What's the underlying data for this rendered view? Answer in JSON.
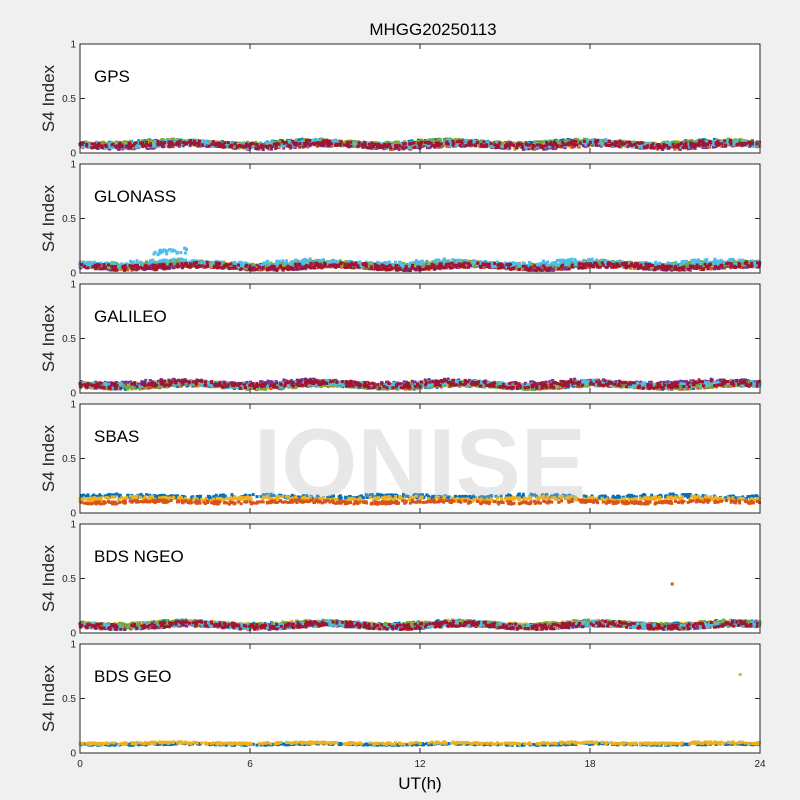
{
  "figure": {
    "title": "MHGG20250113",
    "xlabel": "UT(h)",
    "watermark": "IONISE",
    "background": "#f0f0f0",
    "axes_background": "#ffffff"
  },
  "chart_data": {
    "type": "scatter",
    "title": "MHGG20250113",
    "xlabel": "UT(h)",
    "ylabel": "S4 Index",
    "xlim": [
      0,
      24
    ],
    "ylim": [
      0,
      1
    ],
    "xticks": [
      "0",
      "6",
      "12",
      "18",
      "24"
    ],
    "yticks": [
      "0",
      "0.5",
      "1"
    ],
    "grid": false,
    "colors": [
      "#0072bd",
      "#d95319",
      "#edb120",
      "#7e2f8e",
      "#77ac30",
      "#4dbeee",
      "#a2142f"
    ],
    "panels": [
      {
        "label": "GPS",
        "bands": [
          {
            "color": "#0072bd",
            "level": 0.09,
            "spread": 0.03,
            "from": 0,
            "to": 24
          },
          {
            "color": "#d95319",
            "level": 0.07,
            "spread": 0.03,
            "from": 0,
            "to": 24
          },
          {
            "color": "#edb120",
            "level": 0.08,
            "spread": 0.03,
            "from": 0,
            "to": 24
          },
          {
            "color": "#7e2f8e",
            "level": 0.07,
            "spread": 0.03,
            "from": 0,
            "to": 24
          },
          {
            "color": "#77ac30",
            "level": 0.09,
            "spread": 0.03,
            "from": 0,
            "to": 24
          },
          {
            "color": "#4dbeee",
            "level": 0.08,
            "spread": 0.03,
            "from": 0,
            "to": 24
          },
          {
            "color": "#a2142f",
            "level": 0.08,
            "spread": 0.03,
            "from": 0,
            "to": 24
          }
        ]
      },
      {
        "label": "GLONASS",
        "bands": [
          {
            "color": "#0072bd",
            "level": 0.07,
            "spread": 0.03,
            "from": 0,
            "to": 24
          },
          {
            "color": "#d95319",
            "level": 0.06,
            "spread": 0.03,
            "from": 0,
            "to": 24
          },
          {
            "color": "#edb120",
            "level": 0.07,
            "spread": 0.03,
            "from": 0,
            "to": 24
          },
          {
            "color": "#7e2f8e",
            "level": 0.06,
            "spread": 0.03,
            "from": 0,
            "to": 24
          },
          {
            "color": "#77ac30",
            "level": 0.08,
            "spread": 0.03,
            "from": 0,
            "to": 24
          },
          {
            "color": "#4dbeee",
            "level": 0.09,
            "spread": 0.03,
            "from": 0,
            "to": 24
          },
          {
            "color": "#a2142f",
            "level": 0.06,
            "spread": 0.03,
            "from": 0,
            "to": 24
          },
          {
            "color": "#4dbeee",
            "level": 0.2,
            "spread": 0.03,
            "from": 2.6,
            "to": 3.8
          }
        ]
      },
      {
        "label": "GALILEO",
        "bands": [
          {
            "color": "#0072bd",
            "level": 0.07,
            "spread": 0.03,
            "from": 0,
            "to": 24
          },
          {
            "color": "#d95319",
            "level": 0.07,
            "spread": 0.03,
            "from": 0,
            "to": 24
          },
          {
            "color": "#edb120",
            "level": 0.08,
            "spread": 0.03,
            "from": 0,
            "to": 24
          },
          {
            "color": "#7e2f8e",
            "level": 0.09,
            "spread": 0.03,
            "from": 0,
            "to": 24
          },
          {
            "color": "#77ac30",
            "level": 0.07,
            "spread": 0.03,
            "from": 0,
            "to": 24
          },
          {
            "color": "#4dbeee",
            "level": 0.08,
            "spread": 0.03,
            "from": 0,
            "to": 24
          },
          {
            "color": "#a2142f",
            "level": 0.08,
            "spread": 0.03,
            "from": 0,
            "to": 24
          }
        ]
      },
      {
        "label": "SBAS",
        "bands": [
          {
            "color": "#0072bd",
            "level": 0.15,
            "spread": 0.02,
            "from": 0,
            "to": 24
          },
          {
            "color": "#edb120",
            "level": 0.13,
            "spread": 0.02,
            "from": 0,
            "to": 24
          },
          {
            "color": "#d95319",
            "level": 0.1,
            "spread": 0.015,
            "from": 0,
            "to": 24
          }
        ]
      },
      {
        "label": "BDS NGEO",
        "bands": [
          {
            "color": "#0072bd",
            "level": 0.08,
            "spread": 0.03,
            "from": 0,
            "to": 24
          },
          {
            "color": "#d95319",
            "level": 0.07,
            "spread": 0.03,
            "from": 0,
            "to": 24
          },
          {
            "color": "#edb120",
            "level": 0.08,
            "spread": 0.03,
            "from": 0,
            "to": 24
          },
          {
            "color": "#7e2f8e",
            "level": 0.07,
            "spread": 0.03,
            "from": 0,
            "to": 24
          },
          {
            "color": "#77ac30",
            "level": 0.08,
            "spread": 0.03,
            "from": 0,
            "to": 24
          },
          {
            "color": "#4dbeee",
            "level": 0.07,
            "spread": 0.03,
            "from": 0,
            "to": 24
          },
          {
            "color": "#a2142f",
            "level": 0.07,
            "spread": 0.03,
            "from": 0,
            "to": 24
          }
        ],
        "outliers": [
          {
            "x": 20.9,
            "y": 0.45,
            "color": "#d95319"
          }
        ]
      },
      {
        "label": "BDS GEO",
        "bands": [
          {
            "color": "#0072bd",
            "level": 0.08,
            "spread": 0.008,
            "from": 0,
            "to": 24
          },
          {
            "color": "#edb120",
            "level": 0.09,
            "spread": 0.01,
            "from": 0,
            "to": 24
          }
        ],
        "outliers": [
          {
            "x": 23.3,
            "y": 0.72,
            "color": "#edb120"
          }
        ]
      }
    ]
  }
}
